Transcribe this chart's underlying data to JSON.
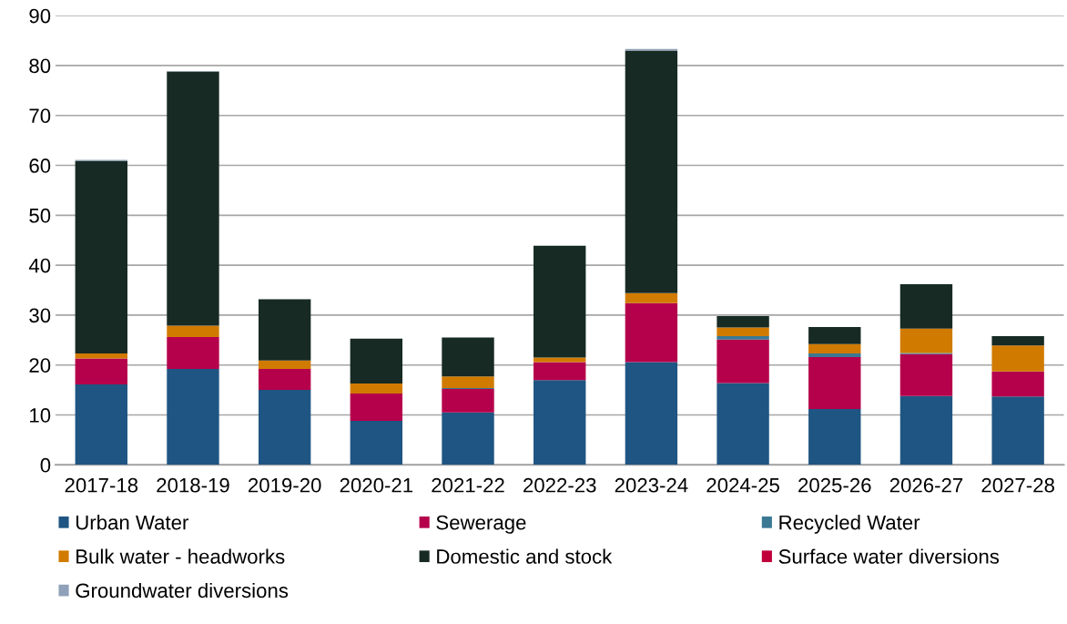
{
  "chart_data": {
    "type": "bar",
    "stacked": true,
    "categories": [
      "2017-18",
      "2018-19",
      "2019-20",
      "2020-21",
      "2021-22",
      "2022-23",
      "2023-24",
      "2024-25",
      "2025-26",
      "2026-27",
      "2027-28"
    ],
    "series": [
      {
        "name": "Urban Water",
        "color": "#1f5582",
        "values": [
          16.1,
          19.2,
          15.0,
          8.8,
          10.5,
          17.0,
          20.6,
          16.4,
          11.2,
          13.8,
          13.7
        ]
      },
      {
        "name": "Sewerage",
        "color": "#b5004b",
        "values": [
          5.2,
          6.4,
          4.2,
          5.5,
          4.7,
          3.6,
          11.8,
          8.7,
          10.4,
          8.4,
          5.0
        ]
      },
      {
        "name": "Recycled Water",
        "color": "#3b7894",
        "values": [
          0,
          0,
          0,
          0,
          0.2,
          0,
          0,
          0.7,
          0.7,
          0.2,
          0
        ]
      },
      {
        "name": "Bulk water - headworks",
        "color": "#d17a00",
        "values": [
          1.0,
          2.3,
          1.7,
          2.0,
          2.3,
          0.9,
          2.0,
          1.7,
          1.9,
          4.9,
          5.2
        ]
      },
      {
        "name": "Domestic and stock",
        "color": "#172a24",
        "values": [
          38.6,
          50.9,
          12.3,
          9.0,
          7.8,
          22.4,
          48.6,
          2.3,
          3.4,
          8.9,
          1.9
        ]
      },
      {
        "name": "Surface water diversions",
        "color": "#c0003a",
        "values": [
          0,
          0,
          0,
          0,
          0,
          0,
          0,
          0,
          0,
          0,
          0
        ]
      },
      {
        "name": "Groundwater diversions",
        "color": "#8fa1b8",
        "values": [
          0.2,
          0.1,
          0,
          0,
          0,
          0,
          0.3,
          0,
          0,
          0,
          0
        ]
      }
    ],
    "ylim": [
      0,
      90
    ],
    "yticks": [
      0,
      10,
      20,
      30,
      40,
      50,
      60,
      70,
      80,
      90
    ],
    "grid": "y",
    "legend": "bottom"
  }
}
